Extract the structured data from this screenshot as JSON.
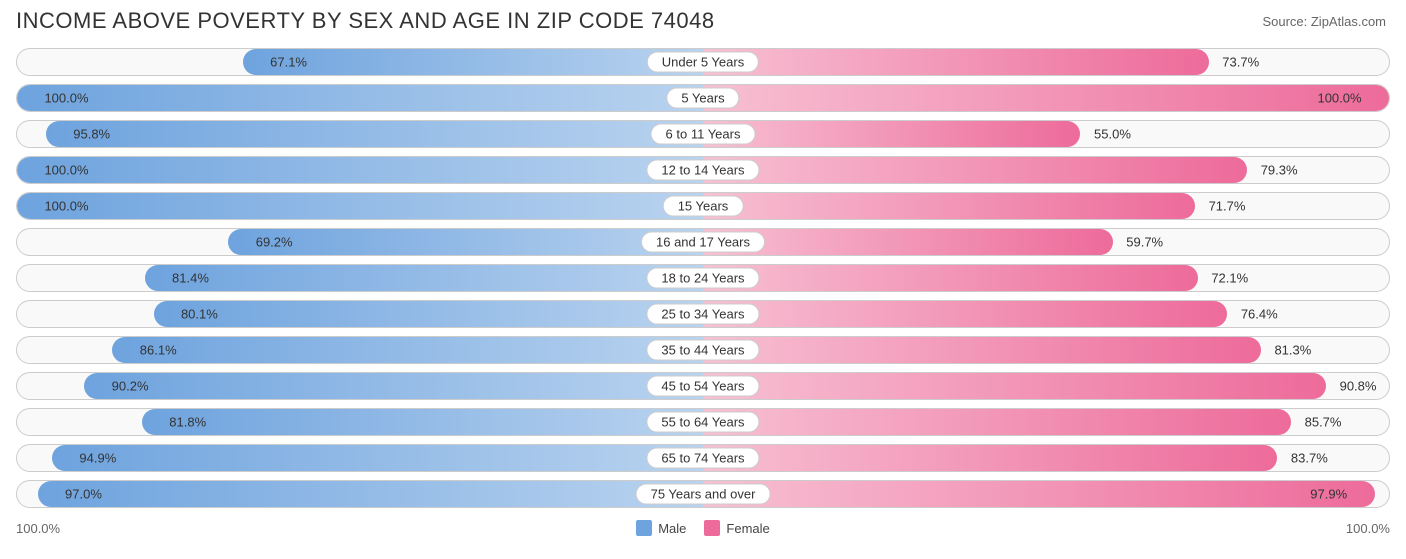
{
  "title": "INCOME ABOVE POVERTY BY SEX AND AGE IN ZIP CODE 74048",
  "source": "Source: ZipAtlas.com",
  "chart": {
    "type": "bar-bidirectional",
    "max_percent": 100.0,
    "axis_left_label": "100.0%",
    "axis_right_label": "100.0%",
    "male_gradient_from": "#b9d3ef",
    "male_gradient_to": "#6ea3de",
    "female_gradient_from": "#f7c0d3",
    "female_gradient_to": "#ed6b9a",
    "track_bg": "#f9f9f9",
    "track_border": "#cccccc",
    "label_bg": "#ffffff",
    "text_color": "#333333",
    "rows": [
      {
        "category": "Under 5 Years",
        "male": 67.1,
        "female": 73.7
      },
      {
        "category": "5 Years",
        "male": 100.0,
        "female": 100.0
      },
      {
        "category": "6 to 11 Years",
        "male": 95.8,
        "female": 55.0
      },
      {
        "category": "12 to 14 Years",
        "male": 100.0,
        "female": 79.3
      },
      {
        "category": "15 Years",
        "male": 100.0,
        "female": 71.7
      },
      {
        "category": "16 and 17 Years",
        "male": 69.2,
        "female": 59.7
      },
      {
        "category": "18 to 24 Years",
        "male": 81.4,
        "female": 72.1
      },
      {
        "category": "25 to 34 Years",
        "male": 80.1,
        "female": 76.4
      },
      {
        "category": "35 to 44 Years",
        "male": 86.1,
        "female": 81.3
      },
      {
        "category": "45 to 54 Years",
        "male": 90.2,
        "female": 90.8
      },
      {
        "category": "55 to 64 Years",
        "male": 81.8,
        "female": 85.7
      },
      {
        "category": "65 to 74 Years",
        "male": 94.9,
        "female": 83.7
      },
      {
        "category": "75 Years and over",
        "male": 97.0,
        "female": 97.9
      }
    ]
  },
  "legend": {
    "male_label": "Male",
    "female_label": "Female",
    "male_color": "#6ea3de",
    "female_color": "#ed6b9a"
  }
}
